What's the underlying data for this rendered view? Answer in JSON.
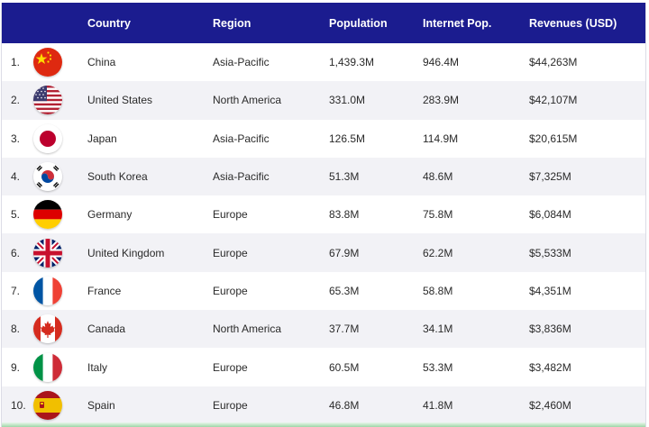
{
  "table": {
    "headers": {
      "country": "Country",
      "region": "Region",
      "population": "Population",
      "internet_pop": "Internet Pop.",
      "revenues": "Revenues (USD)"
    },
    "rows": [
      {
        "rank": "1.",
        "flag": "china-flag-icon",
        "country": "China",
        "region": "Asia-Pacific",
        "population": "1,439.3M",
        "internet_pop": "946.4M",
        "revenues": "$44,263M"
      },
      {
        "rank": "2.",
        "flag": "usa-flag-icon",
        "country": "United States",
        "region": "North America",
        "population": "331.0M",
        "internet_pop": "283.9M",
        "revenues": "$42,107M"
      },
      {
        "rank": "3.",
        "flag": "japan-flag-icon",
        "country": "Japan",
        "region": "Asia-Pacific",
        "population": "126.5M",
        "internet_pop": "114.9M",
        "revenues": "$20,615M"
      },
      {
        "rank": "4.",
        "flag": "south-korea-flag-icon",
        "country": "South Korea",
        "region": "Asia-Pacific",
        "population": "51.3M",
        "internet_pop": "48.6M",
        "revenues": "$7,325M"
      },
      {
        "rank": "5.",
        "flag": "germany-flag-icon",
        "country": "Germany",
        "region": "Europe",
        "population": "83.8M",
        "internet_pop": "75.8M",
        "revenues": "$6,084M"
      },
      {
        "rank": "6.",
        "flag": "uk-flag-icon",
        "country": "United Kingdom",
        "region": "Europe",
        "population": "67.9M",
        "internet_pop": "62.2M",
        "revenues": "$5,533M"
      },
      {
        "rank": "7.",
        "flag": "france-flag-icon",
        "country": "France",
        "region": "Europe",
        "population": "65.3M",
        "internet_pop": "58.8M",
        "revenues": "$4,351M"
      },
      {
        "rank": "8.",
        "flag": "canada-flag-icon",
        "country": "Canada",
        "region": "North America",
        "population": "37.7M",
        "internet_pop": "34.1M",
        "revenues": "$3,836M"
      },
      {
        "rank": "9.",
        "flag": "italy-flag-icon",
        "country": "Italy",
        "region": "Europe",
        "population": "60.5M",
        "internet_pop": "53.3M",
        "revenues": "$3,482M"
      },
      {
        "rank": "10.",
        "flag": "spain-flag-icon",
        "country": "Spain",
        "region": "Europe",
        "population": "46.8M",
        "internet_pop": "41.8M",
        "revenues": "$2,460M"
      }
    ]
  },
  "colors": {
    "header_bg": "#1b1c8f",
    "alt_row_bg": "#f2f2f6"
  }
}
